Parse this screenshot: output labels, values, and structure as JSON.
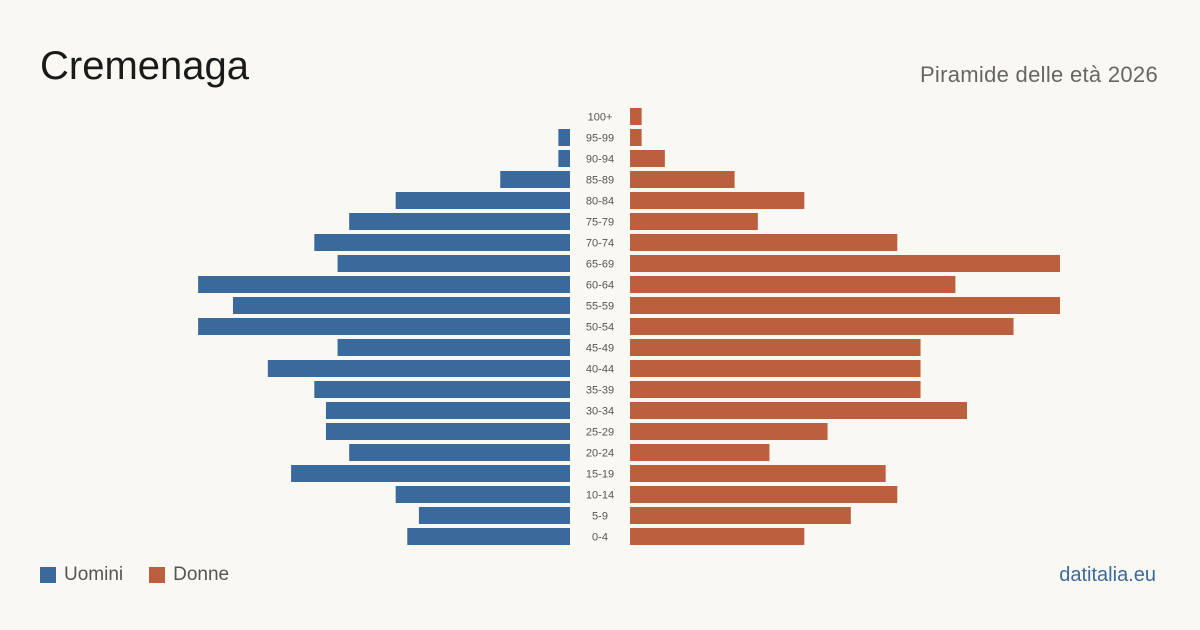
{
  "header": {
    "title": "Cremenaga",
    "subtitle": "Piramide delle età 2026"
  },
  "footer": {
    "source": "datitalia.eu"
  },
  "colors": {
    "male": "#3a6a9b",
    "female": "#bb5f3f",
    "background": "#faf8f3"
  },
  "chart_data": {
    "type": "bar",
    "orientation": "horizontal-pyramid",
    "title": "Cremenaga",
    "subtitle": "Piramide delle età 2026",
    "categories": [
      "100+",
      "95-99",
      "90-94",
      "85-89",
      "80-84",
      "75-79",
      "70-74",
      "65-69",
      "60-64",
      "55-59",
      "50-54",
      "45-49",
      "40-44",
      "35-39",
      "30-34",
      "25-29",
      "20-24",
      "15-19",
      "10-14",
      "5-9",
      "0-4"
    ],
    "series": [
      {
        "name": "Uomini",
        "color": "#3a6a9b",
        "side": "left",
        "values": [
          0,
          1,
          1,
          6,
          15,
          19,
          22,
          20,
          32,
          29,
          32,
          20,
          26,
          22,
          21,
          21,
          19,
          24,
          15,
          13,
          14
        ]
      },
      {
        "name": "Donne",
        "color": "#bb5f3f",
        "side": "right",
        "values": [
          1,
          1,
          3,
          9,
          15,
          11,
          23,
          37,
          28,
          37,
          33,
          25,
          25,
          25,
          29,
          17,
          12,
          22,
          23,
          19,
          15
        ]
      }
    ],
    "xlim": [
      0,
      37
    ],
    "grid": false,
    "legend": "bottom-left"
  }
}
